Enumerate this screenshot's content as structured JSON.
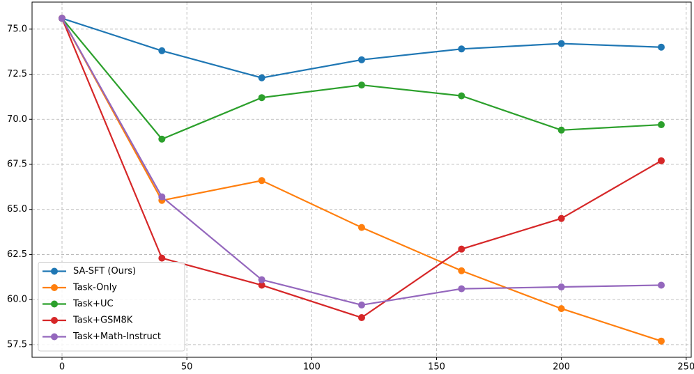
{
  "chart_data": {
    "type": "line",
    "x": [
      0,
      40,
      80,
      120,
      160,
      200,
      240
    ],
    "series": [
      {
        "name": "SA-SFT (Ours)",
        "color": "#1f77b4",
        "values": [
          75.6,
          73.8,
          72.3,
          73.3,
          73.9,
          74.2,
          74.0
        ]
      },
      {
        "name": "Task-Only",
        "color": "#ff7f0e",
        "values": [
          75.6,
          65.5,
          66.6,
          64.0,
          61.6,
          59.5,
          57.7
        ]
      },
      {
        "name": "Task+UC",
        "color": "#2ca02c",
        "values": [
          75.6,
          68.9,
          71.2,
          71.9,
          71.3,
          69.4,
          69.7
        ]
      },
      {
        "name": "Task+GSM8K",
        "color": "#d62728",
        "values": [
          75.6,
          62.3,
          60.8,
          59.0,
          62.8,
          64.5,
          67.7
        ]
      },
      {
        "name": "Task+Math-Instruct",
        "color": "#9467bd",
        "values": [
          75.6,
          65.7,
          61.1,
          59.7,
          60.6,
          60.7,
          60.8
        ]
      }
    ],
    "xlim": [
      -12,
      252
    ],
    "xticks": [
      0,
      50,
      100,
      150,
      200,
      250
    ],
    "ylim": [
      56.8,
      76.5
    ],
    "yticks": [
      57.5,
      {
        "value": 60,
        "label": "60.0"
      },
      62.5,
      {
        "value": 65,
        "label": "65.0"
      },
      67.5,
      {
        "value": 70,
        "label": "70.0"
      },
      72.5,
      {
        "value": 75,
        "label": "75.0"
      }
    ],
    "grid": true,
    "legend": "lower left"
  }
}
